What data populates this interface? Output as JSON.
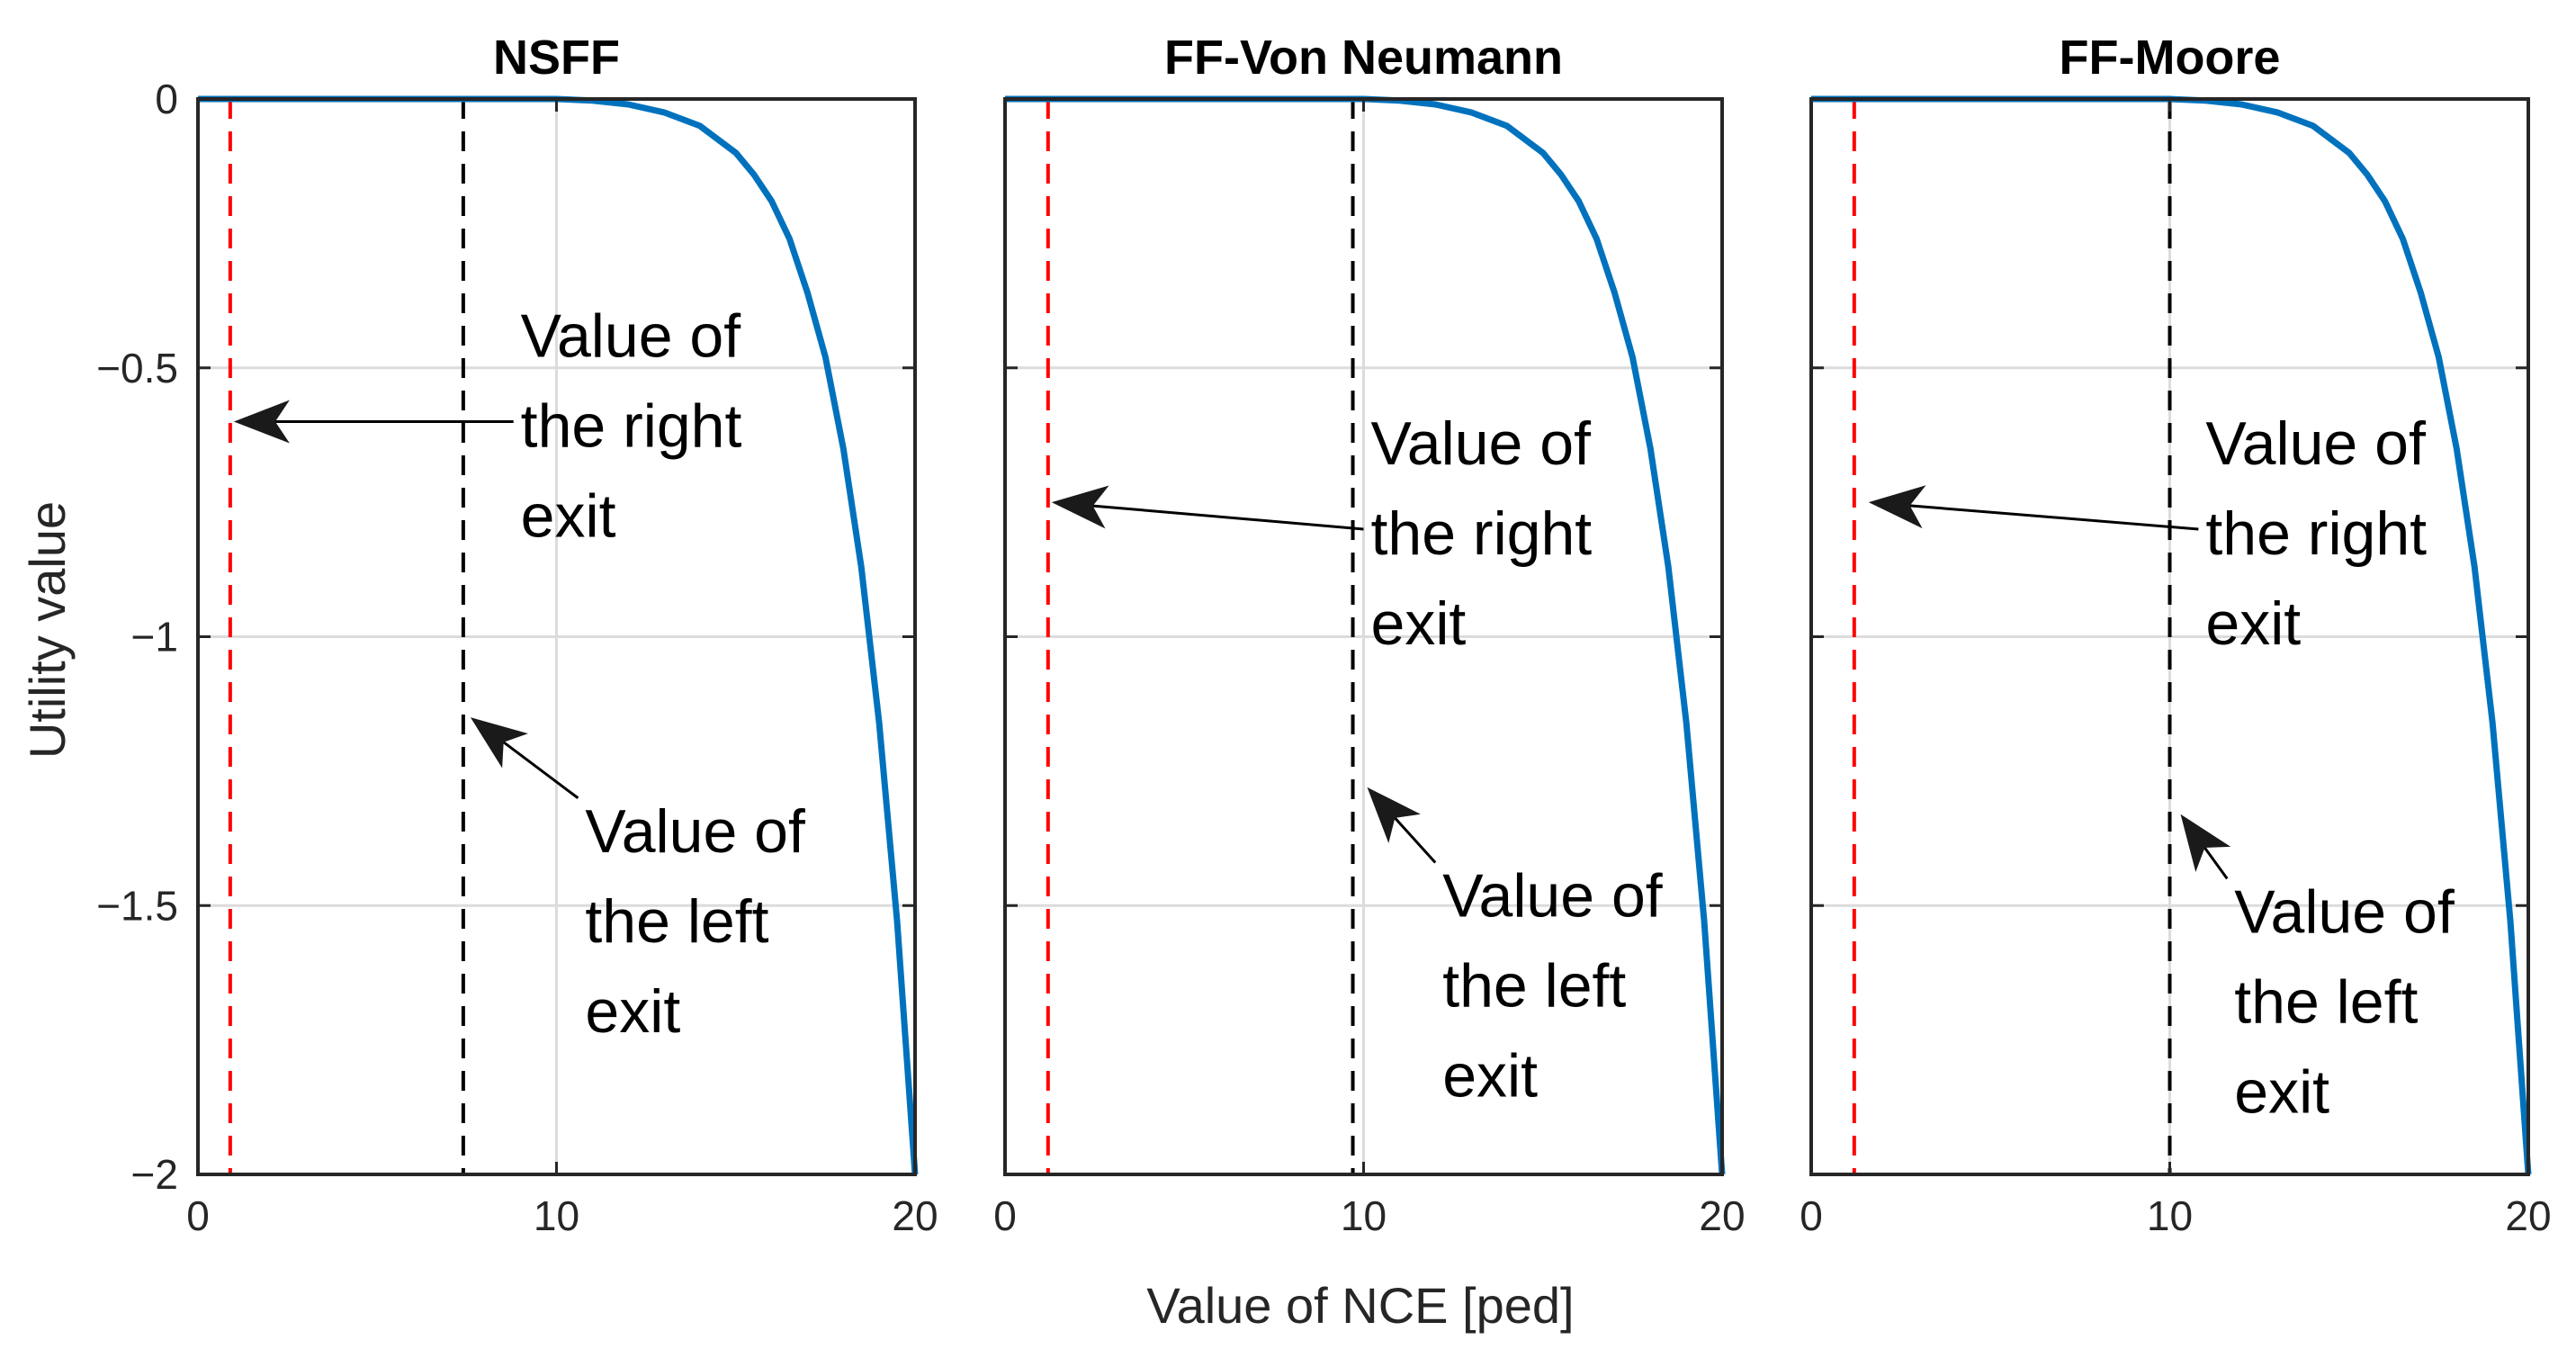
{
  "figure": {
    "xlabel": "Value of NCE [ped]",
    "ylabel": "Utility value"
  },
  "chart_data": [
    {
      "type": "line",
      "title": "NSFF",
      "xlabel": "Value of NCE [ped]",
      "ylabel": "Utility value",
      "xlim": [
        0,
        20
      ],
      "ylim": [
        -2,
        0
      ],
      "xticks": [
        0,
        10,
        20
      ],
      "yticks": [
        0,
        -0.5,
        -1,
        -1.5,
        -2
      ],
      "xtick_labels": [
        "0",
        "10",
        "20"
      ],
      "ytick_labels": [
        "0",
        "−0.5",
        "−1",
        "−1.5",
        "−2"
      ],
      "grid": true,
      "series": [
        {
          "color": "#0072BD",
          "x": [
            0,
            2,
            4,
            6,
            8,
            10,
            11,
            12,
            13,
            14,
            15,
            15.5,
            16,
            16.5,
            17,
            17.5,
            18,
            18.5,
            19,
            19.5,
            20
          ],
          "y": [
            0,
            0,
            0,
            0,
            0,
            0,
            -0.003,
            -0.01,
            -0.025,
            -0.05,
            -0.1,
            -0.14,
            -0.19,
            -0.26,
            -0.36,
            -0.48,
            -0.65,
            -0.87,
            -1.16,
            -1.53,
            -2.0
          ]
        }
      ],
      "vlines": [
        {
          "x": 0.9,
          "color": "#FF0000",
          "style": "dashed"
        },
        {
          "x": 7.4,
          "color": "#000000",
          "style": "dashed"
        }
      ],
      "annotations": [
        {
          "lines": [
            "Value of",
            "the right",
            "exit"
          ],
          "arrow_from": [
            8.8,
            -0.6
          ],
          "arrow_to": [
            1.0,
            -0.6
          ]
        },
        {
          "lines": [
            "Value of",
            "the left",
            "exit"
          ],
          "arrow_from": [
            10.6,
            -1.3
          ],
          "arrow_to": [
            7.6,
            -1.15
          ]
        }
      ]
    },
    {
      "type": "line",
      "title": "FF-Von Neumann",
      "xlim": [
        0,
        20
      ],
      "ylim": [
        -2,
        0
      ],
      "xticks": [
        0,
        10,
        20
      ],
      "yticks": [
        0,
        -0.5,
        -1,
        -1.5,
        -2
      ],
      "xtick_labels": [
        "0",
        "10",
        "20"
      ],
      "grid": true,
      "series": [
        {
          "color": "#0072BD",
          "x": [
            0,
            2,
            4,
            6,
            8,
            10,
            11,
            12,
            13,
            14,
            15,
            15.5,
            16,
            16.5,
            17,
            17.5,
            18,
            18.5,
            19,
            19.5,
            20
          ],
          "y": [
            0,
            0,
            0,
            0,
            0,
            0,
            -0.003,
            -0.01,
            -0.025,
            -0.05,
            -0.1,
            -0.14,
            -0.19,
            -0.26,
            -0.36,
            -0.48,
            -0.65,
            -0.87,
            -1.16,
            -1.53,
            -2.0
          ]
        }
      ],
      "vlines": [
        {
          "x": 1.2,
          "color": "#FF0000",
          "style": "dashed"
        },
        {
          "x": 9.7,
          "color": "#000000",
          "style": "dashed"
        }
      ],
      "annotations": [
        {
          "lines": [
            "Value of",
            "the right",
            "exit"
          ],
          "arrow_from": [
            10.0,
            -0.8
          ],
          "arrow_to": [
            1.3,
            -0.75
          ]
        },
        {
          "lines": [
            "Value of",
            "the left",
            "exit"
          ],
          "arrow_from": [
            12.0,
            -1.42
          ],
          "arrow_to": [
            10.1,
            -1.28
          ]
        }
      ]
    },
    {
      "type": "line",
      "title": "FF-Moore",
      "xlim": [
        0,
        20
      ],
      "ylim": [
        -2,
        0
      ],
      "xticks": [
        0,
        10,
        20
      ],
      "yticks": [
        0,
        -0.5,
        -1,
        -1.5,
        -2
      ],
      "xtick_labels": [
        "0",
        "10",
        "20"
      ],
      "grid": true,
      "series": [
        {
          "color": "#0072BD",
          "x": [
            0,
            2,
            4,
            6,
            8,
            10,
            11,
            12,
            13,
            14,
            15,
            15.5,
            16,
            16.5,
            17,
            17.5,
            18,
            18.5,
            19,
            19.5,
            20
          ],
          "y": [
            0,
            0,
            0,
            0,
            0,
            0,
            -0.003,
            -0.01,
            -0.025,
            -0.05,
            -0.1,
            -0.14,
            -0.19,
            -0.26,
            -0.36,
            -0.48,
            -0.65,
            -0.87,
            -1.16,
            -1.53,
            -2.0
          ]
        }
      ],
      "vlines": [
        {
          "x": 1.2,
          "color": "#FF0000",
          "style": "dashed"
        },
        {
          "x": 10.0,
          "color": "#000000",
          "style": "dashed"
        }
      ],
      "annotations": [
        {
          "lines": [
            "Value of",
            "the right",
            "exit"
          ],
          "arrow_from": [
            10.8,
            -0.8
          ],
          "arrow_to": [
            1.6,
            -0.75
          ]
        },
        {
          "lines": [
            "Value of",
            "the left",
            "exit"
          ],
          "arrow_from": [
            11.6,
            -1.45
          ],
          "arrow_to": [
            10.3,
            -1.33
          ]
        }
      ]
    }
  ]
}
